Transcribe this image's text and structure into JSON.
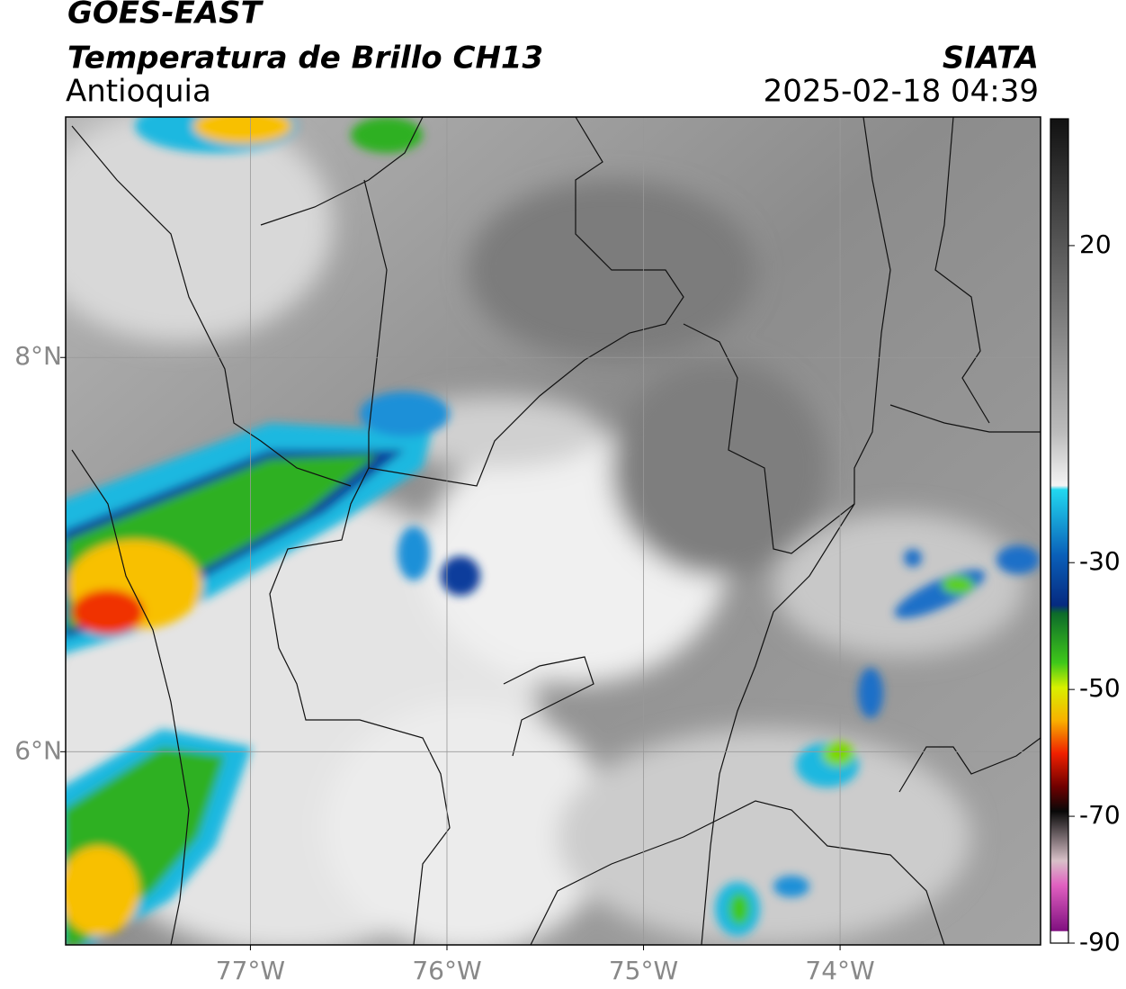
{
  "header": {
    "title": "GOES-EAST",
    "subtitle": "Temperatura de Brillo CH13",
    "region": "Antioquia",
    "source": "SIATA",
    "datetime": "2025-02-18 04:39"
  },
  "map": {
    "xlim": [
      -77.94,
      -72.98
    ],
    "ylim": [
      5.02,
      9.22
    ],
    "xticks": [
      {
        "value": -77,
        "label": "77°W"
      },
      {
        "value": -76,
        "label": "76°W"
      },
      {
        "value": -75,
        "label": "75°W"
      },
      {
        "value": -74,
        "label": "74°W"
      }
    ],
    "yticks": [
      {
        "value": 8,
        "label": "8°N"
      },
      {
        "value": 6,
        "label": "6°N"
      }
    ],
    "grid": true
  },
  "colorbar": {
    "lim": [
      -90,
      40
    ],
    "ticks": [
      20,
      -30,
      -50,
      -70,
      -90
    ]
  }
}
